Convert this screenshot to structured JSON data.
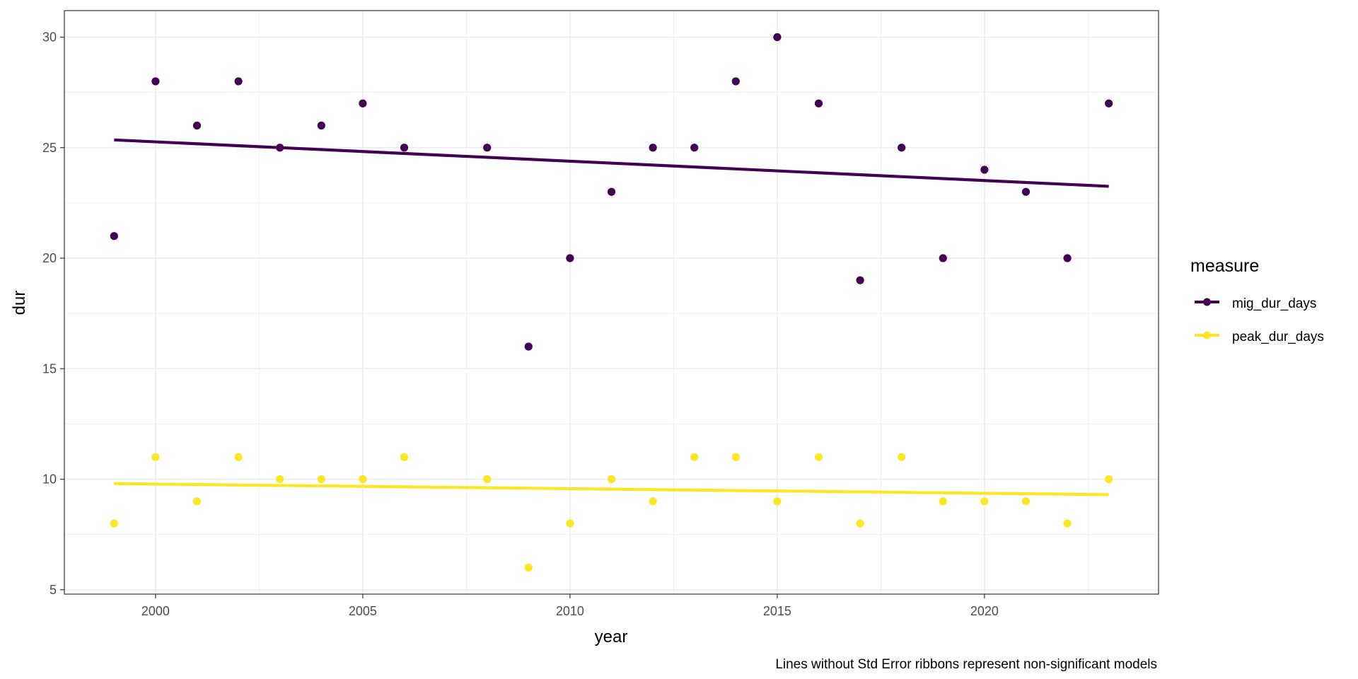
{
  "chart_data": {
    "type": "scatter",
    "xlabel": "year",
    "ylabel": "dur",
    "xlim": [
      1997.8,
      2024.2
    ],
    "ylim": [
      4.8,
      31.2
    ],
    "x_ticks": [
      2000,
      2005,
      2010,
      2015,
      2020
    ],
    "x_minor_ticks": [
      2002.5,
      2007.5,
      2012.5,
      2017.5,
      2022.5
    ],
    "y_ticks": [
      5,
      10,
      15,
      20,
      25,
      30
    ],
    "y_minor_ticks": [
      7.5,
      12.5,
      17.5,
      22.5,
      27.5
    ],
    "grid": true,
    "legend": {
      "title": "measure",
      "position": "right"
    },
    "caption": "Lines without Std Error ribbons represent non-significant models",
    "series": [
      {
        "name": "mig_dur_days",
        "color": "#440154",
        "points": [
          [
            1999,
            21
          ],
          [
            2000,
            28
          ],
          [
            2001,
            26
          ],
          [
            2002,
            28
          ],
          [
            2003,
            25
          ],
          [
            2004,
            26
          ],
          [
            2005,
            27
          ],
          [
            2006,
            25
          ],
          [
            2008,
            25
          ],
          [
            2009,
            16
          ],
          [
            2010,
            20
          ],
          [
            2011,
            23
          ],
          [
            2012,
            25
          ],
          [
            2013,
            25
          ],
          [
            2014,
            28
          ],
          [
            2015,
            30
          ],
          [
            2016,
            27
          ],
          [
            2017,
            19
          ],
          [
            2018,
            25
          ],
          [
            2019,
            20
          ],
          [
            2020,
            24
          ],
          [
            2021,
            23
          ],
          [
            2022,
            20
          ],
          [
            2023,
            27
          ]
        ],
        "trend": {
          "x": [
            1999,
            2023
          ],
          "y": [
            25.35,
            23.25
          ]
        }
      },
      {
        "name": "peak_dur_days",
        "color": "#FDE725",
        "points": [
          [
            1999,
            8
          ],
          [
            2000,
            11
          ],
          [
            2001,
            9
          ],
          [
            2002,
            11
          ],
          [
            2003,
            10
          ],
          [
            2004,
            10
          ],
          [
            2005,
            10
          ],
          [
            2006,
            11
          ],
          [
            2008,
            10
          ],
          [
            2009,
            6
          ],
          [
            2010,
            8
          ],
          [
            2011,
            10
          ],
          [
            2012,
            9
          ],
          [
            2013,
            11
          ],
          [
            2014,
            11
          ],
          [
            2015,
            9
          ],
          [
            2016,
            11
          ],
          [
            2017,
            8
          ],
          [
            2018,
            11
          ],
          [
            2019,
            9
          ],
          [
            2020,
            9
          ],
          [
            2021,
            9
          ],
          [
            2022,
            8
          ],
          [
            2023,
            10
          ]
        ],
        "trend": {
          "x": [
            1999,
            2023
          ],
          "y": [
            9.8,
            9.3
          ]
        }
      }
    ]
  }
}
